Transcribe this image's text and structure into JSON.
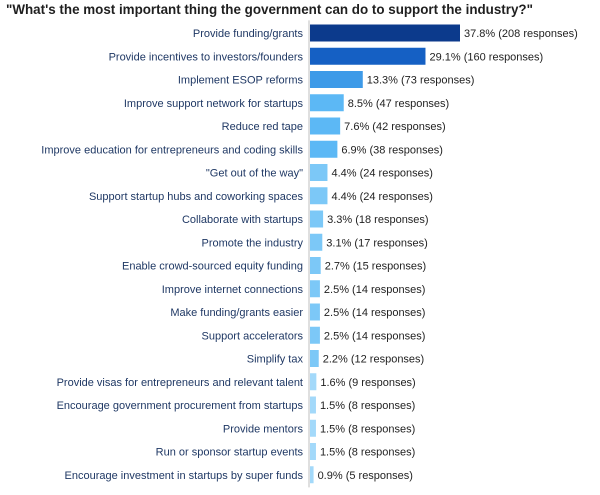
{
  "chart_data": {
    "type": "bar",
    "orientation": "horizontal",
    "title": "\"What's the most important thing the government can do to support the industry?\"",
    "xlabel": "",
    "ylabel": "",
    "grid": false,
    "legend": "none",
    "xlim": [
      0,
      40
    ],
    "categories": [
      "Provide funding/grants",
      "Provide incentives to investors/founders",
      "Implement ESOP reforms",
      "Improve support network for startups",
      "Reduce red tape",
      "Improve education for entrepreneurs and coding skills",
      "\"Get out of the way\"",
      "Support startup hubs and coworking spaces",
      "Collaborate with startups",
      "Promote the industry",
      "Enable crowd-sourced equity funding",
      "Improve internet connections",
      "Make funding/grants easier",
      "Support accelerators",
      "Simplify tax",
      "Provide visas for entrepreneurs and relevant talent",
      "Encourage government procurement from startups",
      "Provide mentors",
      "Run or sponsor startup events",
      "Encourage investment in startups by super funds"
    ],
    "values": [
      37.8,
      29.1,
      13.3,
      8.5,
      7.6,
      6.9,
      4.4,
      4.4,
      3.3,
      3.1,
      2.7,
      2.5,
      2.5,
      2.5,
      2.2,
      1.6,
      1.5,
      1.5,
      1.5,
      0.9
    ],
    "data_labels": [
      "37.8% (208 responses)",
      "29.1% (160 responses)",
      "13.3% (73 responses)",
      "8.5% (47 responses)",
      "7.6% (42 responses)",
      "6.9% (38 responses)",
      "4.4% (24 responses)",
      "4.4% (24 responses)",
      "3.3% (18 responses)",
      "3.1% (17 responses)",
      "2.7% (15 responses)",
      "2.5% (14 responses)",
      "2.5% (14 responses)",
      "2.5% (14 responses)",
      "2.2% (12 responses)",
      "1.6% (9 responses)",
      "1.5% (8 responses)",
      "1.5% (8 responses)",
      "1.5% (8 responses)",
      "0.9% (5 responses)"
    ],
    "colors": [
      "#0c3a8c",
      "#1560c4",
      "#3d9ae8",
      "#5cb8f5",
      "#5cb8f5",
      "#5cb8f5",
      "#7cc8f7",
      "#7cc8f7",
      "#7cc8f7",
      "#7cc8f7",
      "#7cc8f7",
      "#7cc8f7",
      "#7cc8f7",
      "#7cc8f7",
      "#7cc8f7",
      "#a3d9fa",
      "#a3d9fa",
      "#a3d9fa",
      "#a3d9fa",
      "#a3d9fa"
    ]
  }
}
